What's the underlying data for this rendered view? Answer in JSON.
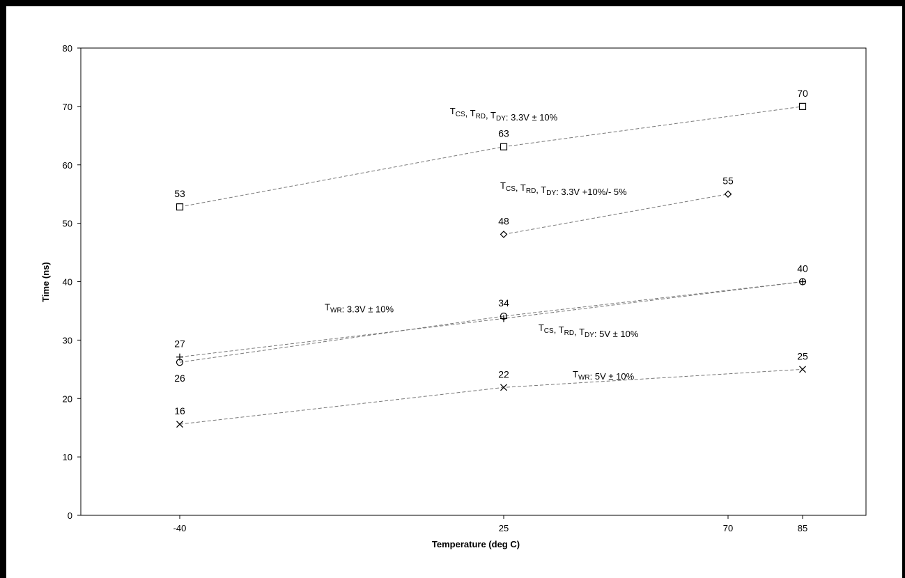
{
  "chart_data": {
    "type": "line",
    "xlabel": "Temperature (deg C)",
    "ylabel": "Time (ns)",
    "ylim": [
      0,
      80
    ],
    "yticks": [
      0,
      10,
      20,
      30,
      40,
      50,
      60,
      70,
      80
    ],
    "xticks": [
      -40,
      25,
      70,
      85
    ],
    "grid": false,
    "series": [
      {
        "marker": "square",
        "points": [
          {
            "x": -40,
            "y": 52.8,
            "label": "53"
          },
          {
            "x": 25,
            "y": 63.1,
            "label": "63"
          },
          {
            "x": 85,
            "y": 70,
            "label": "70"
          }
        ]
      },
      {
        "marker": "diamond",
        "points": [
          {
            "x": 25,
            "y": 48.1,
            "label": "48"
          },
          {
            "x": 70,
            "y": 55,
            "label": "55"
          }
        ]
      },
      {
        "marker": "plus",
        "points": [
          {
            "x": -40,
            "y": 27.1,
            "label": "27"
          },
          {
            "x": 25,
            "y": 33.7,
            "label": ""
          },
          {
            "x": 85,
            "y": 40,
            "label": ""
          }
        ]
      },
      {
        "marker": "circle",
        "points": [
          {
            "x": -40,
            "y": 26.2,
            "label": "26"
          },
          {
            "x": 25,
            "y": 34.1,
            "label": "34"
          },
          {
            "x": 85,
            "y": 40,
            "label": "40"
          }
        ]
      },
      {
        "marker": "x",
        "points": [
          {
            "x": -40,
            "y": 15.6,
            "label": "16"
          },
          {
            "x": 25,
            "y": 21.9,
            "label": "22"
          },
          {
            "x": 85,
            "y": 25,
            "label": "25"
          }
        ]
      }
    ],
    "annotations": [
      {
        "parts": [
          {
            "t": "T"
          },
          {
            "sub": "CS"
          },
          {
            "t": ", T"
          },
          {
            "sub": "RD"
          },
          {
            "t": ", T"
          },
          {
            "sub": "DY"
          },
          {
            "t": ": 3.3V ± 10%"
          }
        ],
        "x": 25,
        "y": 68.7
      },
      {
        "parts": [
          {
            "t": "T"
          },
          {
            "sub": "CS"
          },
          {
            "t": ", T"
          },
          {
            "sub": "RD"
          },
          {
            "t": ", T"
          },
          {
            "sub": "DY"
          },
          {
            "t": ": 3.3V +10%/- 5%"
          }
        ],
        "x": 37,
        "y": 55.9
      },
      {
        "parts": [
          {
            "t": "T"
          },
          {
            "sub": "WR"
          },
          {
            "t": ": 3.3V ± 10%"
          }
        ],
        "x": -4,
        "y": 35.1
      },
      {
        "parts": [
          {
            "t": "T"
          },
          {
            "sub": "CS"
          },
          {
            "t": ", T"
          },
          {
            "sub": "RD"
          },
          {
            "t": ", T"
          },
          {
            "sub": "DY"
          },
          {
            "t": ": 5V ± 10%"
          }
        ],
        "x": 42,
        "y": 31.6
      },
      {
        "parts": [
          {
            "t": "T"
          },
          {
            "sub": "WR"
          },
          {
            "t": ": 5V ± 10%"
          }
        ],
        "x": 45,
        "y": 23.6
      }
    ]
  }
}
